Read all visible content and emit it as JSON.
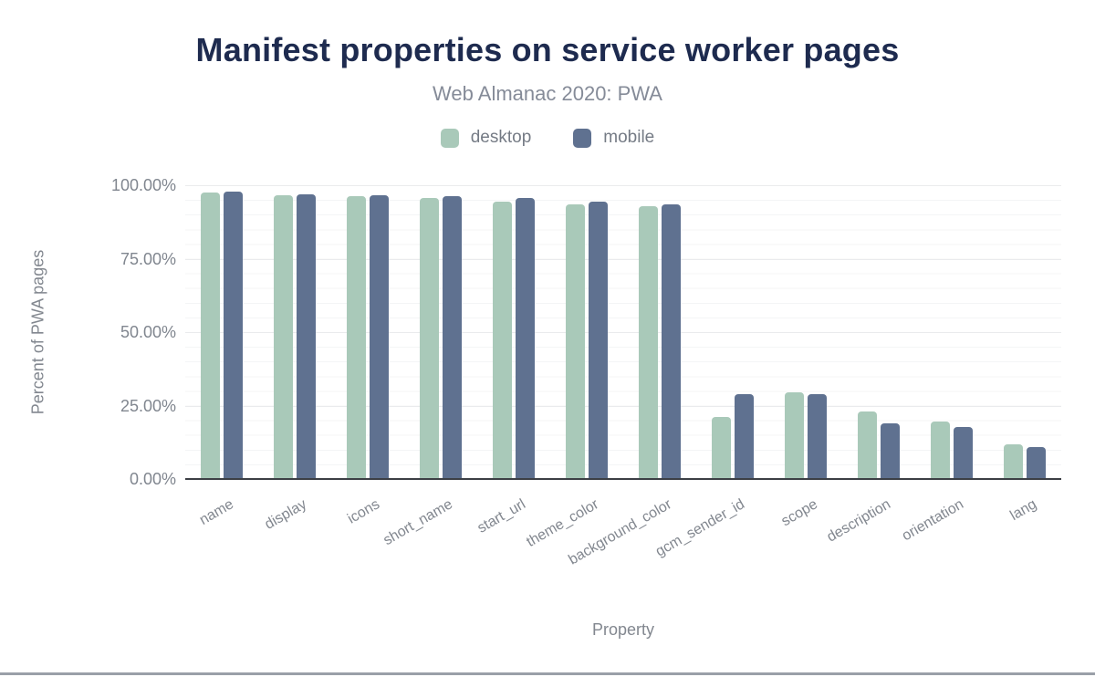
{
  "header": {
    "title": "Manifest properties on service worker pages",
    "subtitle": "Web Almanac 2020: PWA"
  },
  "legend": [
    {
      "label": "desktop",
      "color": "#a9c9b9"
    },
    {
      "label": "mobile",
      "color": "#5f7190"
    }
  ],
  "axes": {
    "x_title": "Property",
    "y_title": "Percent of PWA pages"
  },
  "colors": {
    "title": "#1e2b4f",
    "subtitle": "#858b98",
    "axis_text": "#82878f",
    "desktop_bar": "#a9c9b9",
    "mobile_bar": "#5f7190",
    "axis_line": "#3c3f45"
  },
  "chart_data": {
    "type": "bar",
    "title": "Manifest properties on service worker pages",
    "subtitle": "Web Almanac 2020: PWA",
    "xlabel": "Property",
    "ylabel": "Percent of PWA pages",
    "ylim": [
      0,
      100
    ],
    "ytick_labels": [
      "100.00%",
      "75.00%",
      "50.00%",
      "25.00%",
      "0.00%"
    ],
    "ytick_values": [
      100,
      75,
      50,
      25,
      0
    ],
    "grid": "horizontal, major every 25%, faint minor every 5%",
    "legend_position": "top",
    "xlabel_rotation_deg": -30,
    "categories": [
      "name",
      "display",
      "icons",
      "short_name",
      "start_url",
      "theme_color",
      "background_color",
      "gcm_sender_id",
      "scope",
      "description",
      "orientation",
      "lang"
    ],
    "series": [
      {
        "name": "desktop",
        "color": "#a9c9b9",
        "values": [
          97.5,
          96.5,
          96.4,
          95.6,
          94.5,
          93.5,
          93.0,
          21.2,
          29.5,
          23.1,
          19.7,
          11.9
        ]
      },
      {
        "name": "mobile",
        "color": "#5f7190",
        "values": [
          97.8,
          97.0,
          96.6,
          96.3,
          95.7,
          94.5,
          93.6,
          28.8,
          28.8,
          19.0,
          17.6,
          10.9
        ]
      }
    ]
  }
}
